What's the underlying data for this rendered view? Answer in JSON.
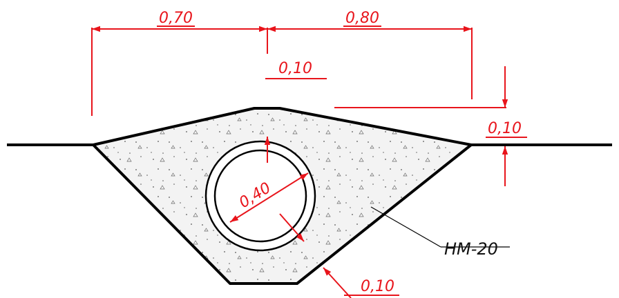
{
  "dimensions": {
    "left_width": "0,70",
    "right_width": "0,80",
    "crown_cover": "0,10",
    "right_cover": "0,10",
    "diameter": "0,40",
    "bottom_cover": "0,10"
  },
  "material_label": "HM-20",
  "colors": {
    "dimension": "#e8141b",
    "line": "#000000",
    "concrete_fill": "#f3f3f3"
  }
}
